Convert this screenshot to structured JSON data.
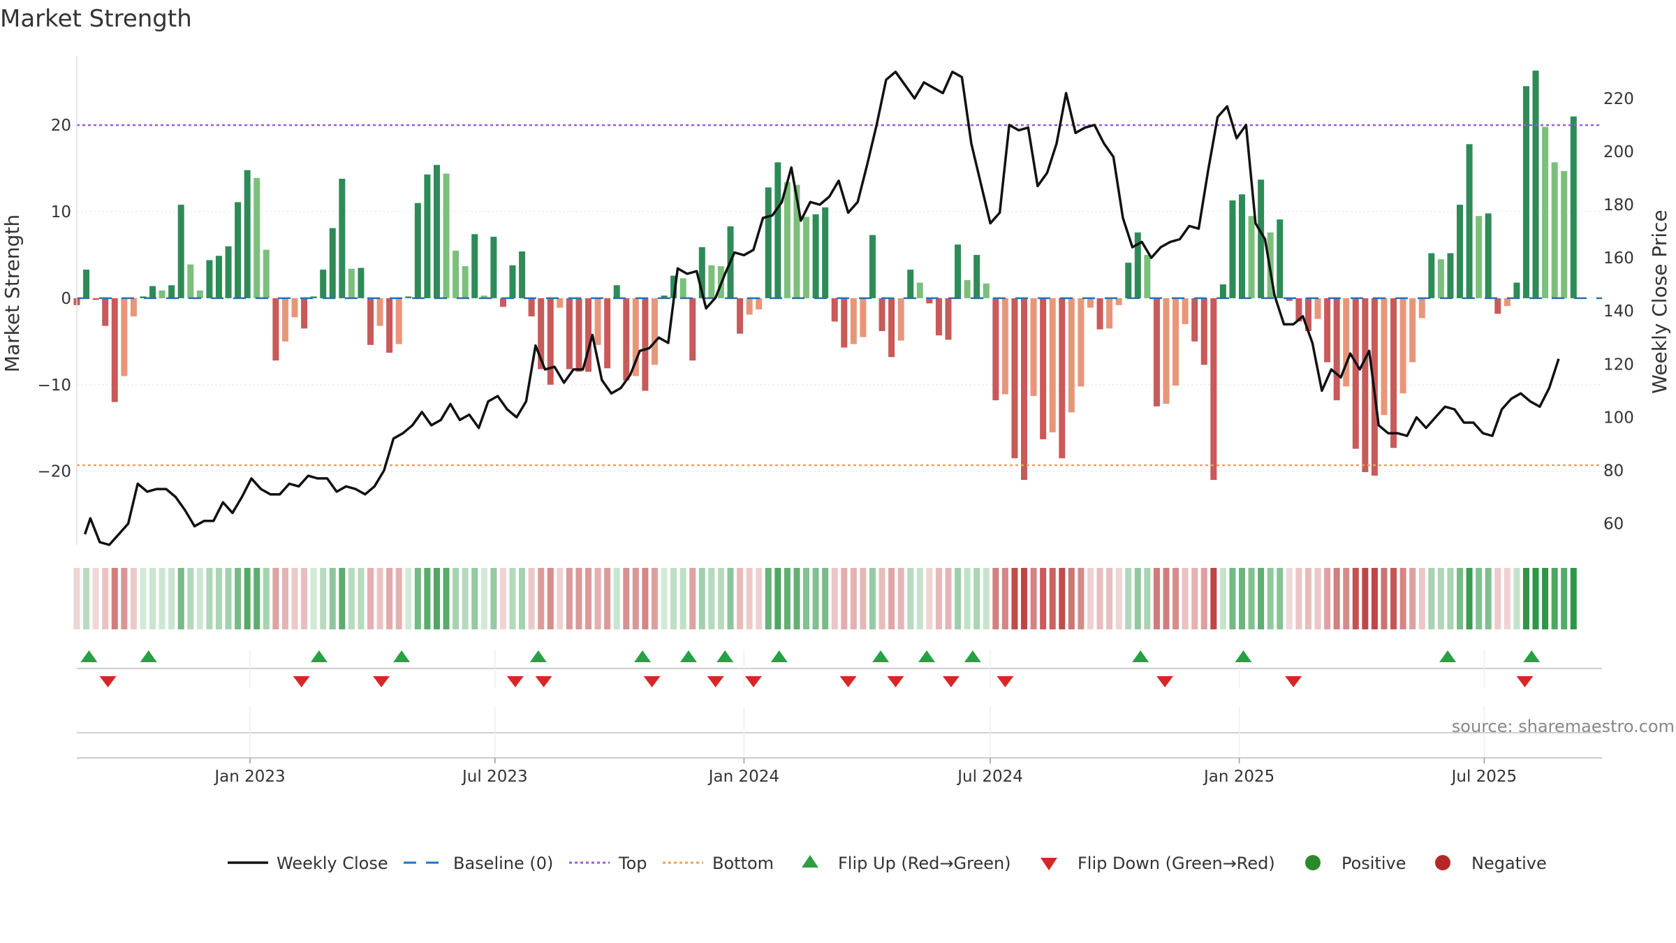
{
  "chart_data": {
    "type": "bar",
    "title": "Market Strength",
    "ylabel": "Market Strength",
    "y2label": "Weekly Close Price",
    "source": "source: sharemaestro.com",
    "ylim": [
      -28.5,
      28
    ],
    "y2lim": [
      52,
      236
    ],
    "yticks": [
      20,
      10,
      0,
      -10,
      -20
    ],
    "ytick_labels": [
      "20",
      "10",
      "0",
      "−10",
      "−20"
    ],
    "y2ticks": [
      220,
      200,
      180,
      160,
      140,
      120,
      100,
      80,
      60
    ],
    "top": 20,
    "bottom": -19.3,
    "x_start": "2022-08-26",
    "x_end": "2025-09-26",
    "xticks": [
      {
        "date": "2023-01-01",
        "label": "Jan 2023"
      },
      {
        "date": "2023-07-01",
        "label": "Jul 2023"
      },
      {
        "date": "2024-01-01",
        "label": "Jan 2024"
      },
      {
        "date": "2024-07-01",
        "label": "Jul 2024"
      },
      {
        "date": "2025-01-01",
        "label": "Jan 2025"
      },
      {
        "date": "2025-07-01",
        "label": "Jul 2025"
      }
    ],
    "bar_start": "2022-08-26",
    "bar_strength": [
      -0.8,
      3.3,
      -0.2,
      -3.2,
      -12,
      -9,
      -2.1,
      0.2,
      1.4,
      0.9,
      1.5,
      10.8,
      3.9,
      0.9,
      4.4,
      4.9,
      6,
      11.1,
      14.8,
      13.9,
      5.6,
      -7.2,
      -5,
      -2.2,
      -3.5,
      0.2,
      3.3,
      8.1,
      13.8,
      3.4,
      3.5,
      -5.4,
      -3.2,
      -6.3,
      -5.3,
      0.2,
      11,
      14.3,
      15.4,
      14.4,
      5.5,
      3.7,
      7.4,
      0.3,
      7.1,
      -1,
      3.8,
      5.4,
      -2.1,
      -8.2,
      -10,
      -1.1,
      -8.2,
      -8.5,
      -8.5,
      -5.4,
      -8.1,
      1.5,
      -9.5,
      -9,
      -10.7,
      -7.7,
      0.3,
      2.6,
      2.3,
      -7.2,
      5.9,
      3.8,
      3.7,
      8.3,
      -4.1,
      -1.9,
      -1.3,
      12.8,
      15.7,
      13.4,
      13.1,
      9.4,
      9.7,
      10.5,
      -2.7,
      -5.7,
      -5.3,
      -4.5,
      7.3,
      -3.8,
      -6.8,
      -4.9,
      3.3,
      1.8,
      -0.6,
      -4.3,
      -4.8,
      6.2,
      2.1,
      5,
      1.7,
      -11.8,
      -11.1,
      -18.5,
      -21,
      -11.3,
      -16.3,
      -15.5,
      -18.5,
      -13.2,
      -10.2,
      -1.1,
      -3.6,
      -3.5,
      -0.8,
      4.1,
      7.6,
      5,
      -12.5,
      -12.2,
      -10.1,
      -3,
      -5,
      -7.7,
      -21,
      1.6,
      11.3,
      12,
      9.5,
      13.7,
      7.6,
      9.1,
      -0.3,
      -2.7,
      -3.8,
      -2.4,
      -7.4,
      -11.8,
      -10.2,
      -17.4,
      -20.1,
      -20.5,
      -13.5,
      -17.3,
      -11,
      -7.4,
      -2.3,
      5.2,
      4.5,
      5.2,
      10.8,
      17.8,
      9.5,
      9.8,
      -1.8,
      -0.9,
      1.8,
      24.5,
      26.3,
      19.8,
      15.7,
      14.7,
      21
    ],
    "weekly_close": [
      {
        "d": "2022-09-01",
        "v": 56
      },
      {
        "d": "2022-09-05",
        "v": 62
      },
      {
        "d": "2022-09-12",
        "v": 53
      },
      {
        "d": "2022-09-19",
        "v": 52
      },
      {
        "d": "2022-09-26",
        "v": 56
      },
      {
        "d": "2022-10-03",
        "v": 60
      },
      {
        "d": "2022-10-10",
        "v": 75
      },
      {
        "d": "2022-10-17",
        "v": 72
      },
      {
        "d": "2022-10-24",
        "v": 73
      },
      {
        "d": "2022-10-31",
        "v": 73
      },
      {
        "d": "2022-11-07",
        "v": 70
      },
      {
        "d": "2022-11-14",
        "v": 65
      },
      {
        "d": "2022-11-21",
        "v": 59
      },
      {
        "d": "2022-11-28",
        "v": 61
      },
      {
        "d": "2022-12-05",
        "v": 61
      },
      {
        "d": "2022-12-12",
        "v": 68
      },
      {
        "d": "2022-12-19",
        "v": 64
      },
      {
        "d": "2022-12-26",
        "v": 70
      },
      {
        "d": "2023-01-02",
        "v": 77
      },
      {
        "d": "2023-01-09",
        "v": 73
      },
      {
        "d": "2023-01-16",
        "v": 71
      },
      {
        "d": "2023-01-23",
        "v": 71
      },
      {
        "d": "2023-01-30",
        "v": 75
      },
      {
        "d": "2023-02-06",
        "v": 74
      },
      {
        "d": "2023-02-13",
        "v": 78
      },
      {
        "d": "2023-02-20",
        "v": 77
      },
      {
        "d": "2023-02-27",
        "v": 77
      },
      {
        "d": "2023-03-06",
        "v": 72
      },
      {
        "d": "2023-03-13",
        "v": 74
      },
      {
        "d": "2023-03-20",
        "v": 73
      },
      {
        "d": "2023-03-27",
        "v": 71
      },
      {
        "d": "2023-04-03",
        "v": 74
      },
      {
        "d": "2023-04-10",
        "v": 80
      },
      {
        "d": "2023-04-17",
        "v": 92
      },
      {
        "d": "2023-04-24",
        "v": 94
      },
      {
        "d": "2023-05-01",
        "v": 97
      },
      {
        "d": "2023-05-08",
        "v": 102
      },
      {
        "d": "2023-05-15",
        "v": 97
      },
      {
        "d": "2023-05-22",
        "v": 99
      },
      {
        "d": "2023-05-29",
        "v": 105
      },
      {
        "d": "2023-06-05",
        "v": 99
      },
      {
        "d": "2023-06-12",
        "v": 101
      },
      {
        "d": "2023-06-19",
        "v": 96
      },
      {
        "d": "2023-06-26",
        "v": 106
      },
      {
        "d": "2023-07-03",
        "v": 108
      },
      {
        "d": "2023-07-10",
        "v": 103
      },
      {
        "d": "2023-07-17",
        "v": 100
      },
      {
        "d": "2023-07-24",
        "v": 106
      },
      {
        "d": "2023-07-31",
        "v": 127
      },
      {
        "d": "2023-08-07",
        "v": 118
      },
      {
        "d": "2023-08-14",
        "v": 119
      },
      {
        "d": "2023-08-21",
        "v": 113
      },
      {
        "d": "2023-08-28",
        "v": 118
      },
      {
        "d": "2023-09-04",
        "v": 118
      },
      {
        "d": "2023-09-11",
        "v": 131
      },
      {
        "d": "2023-09-18",
        "v": 114
      },
      {
        "d": "2023-09-25",
        "v": 109
      },
      {
        "d": "2023-10-02",
        "v": 111
      },
      {
        "d": "2023-10-09",
        "v": 116
      },
      {
        "d": "2023-10-16",
        "v": 125
      },
      {
        "d": "2023-10-23",
        "v": 126
      },
      {
        "d": "2023-10-30",
        "v": 130
      },
      {
        "d": "2023-11-06",
        "v": 128
      },
      {
        "d": "2023-11-13",
        "v": 156
      },
      {
        "d": "2023-11-20",
        "v": 154
      },
      {
        "d": "2023-11-27",
        "v": 155
      },
      {
        "d": "2023-12-04",
        "v": 141
      },
      {
        "d": "2023-12-11",
        "v": 145
      },
      {
        "d": "2023-12-18",
        "v": 154
      },
      {
        "d": "2023-12-25",
        "v": 162
      },
      {
        "d": "2024-01-01",
        "v": 161
      },
      {
        "d": "2024-01-08",
        "v": 163
      },
      {
        "d": "2024-01-15",
        "v": 175
      },
      {
        "d": "2024-01-22",
        "v": 176
      },
      {
        "d": "2024-01-29",
        "v": 181
      },
      {
        "d": "2024-02-05",
        "v": 194
      },
      {
        "d": "2024-02-12",
        "v": 174
      },
      {
        "d": "2024-02-19",
        "v": 181
      },
      {
        "d": "2024-02-26",
        "v": 180
      },
      {
        "d": "2024-03-04",
        "v": 183
      },
      {
        "d": "2024-03-11",
        "v": 189
      },
      {
        "d": "2024-03-18",
        "v": 177
      },
      {
        "d": "2024-03-25",
        "v": 181
      },
      {
        "d": "2024-04-01",
        "v": 195
      },
      {
        "d": "2024-04-08",
        "v": 210
      },
      {
        "d": "2024-04-15",
        "v": 227
      },
      {
        "d": "2024-04-22",
        "v": 230
      },
      {
        "d": "2024-04-29",
        "v": 225
      },
      {
        "d": "2024-05-06",
        "v": 220
      },
      {
        "d": "2024-05-13",
        "v": 226
      },
      {
        "d": "2024-05-20",
        "v": 224
      },
      {
        "d": "2024-05-27",
        "v": 222
      },
      {
        "d": "2024-06-03",
        "v": 230
      },
      {
        "d": "2024-06-10",
        "v": 228
      },
      {
        "d": "2024-06-17",
        "v": 203
      },
      {
        "d": "2024-06-24",
        "v": 188
      },
      {
        "d": "2024-07-01",
        "v": 173
      },
      {
        "d": "2024-07-08",
        "v": 177
      },
      {
        "d": "2024-07-15",
        "v": 210
      },
      {
        "d": "2024-07-22",
        "v": 208
      },
      {
        "d": "2024-07-29",
        "v": 209
      },
      {
        "d": "2024-08-05",
        "v": 187
      },
      {
        "d": "2024-08-12",
        "v": 192
      },
      {
        "d": "2024-08-19",
        "v": 203
      },
      {
        "d": "2024-08-26",
        "v": 222
      },
      {
        "d": "2024-09-02",
        "v": 207
      },
      {
        "d": "2024-09-09",
        "v": 209
      },
      {
        "d": "2024-09-16",
        "v": 210
      },
      {
        "d": "2024-09-23",
        "v": 203
      },
      {
        "d": "2024-09-30",
        "v": 198
      },
      {
        "d": "2024-10-07",
        "v": 175
      },
      {
        "d": "2024-10-14",
        "v": 164
      },
      {
        "d": "2024-10-21",
        "v": 166
      },
      {
        "d": "2024-10-28",
        "v": 160
      },
      {
        "d": "2024-11-04",
        "v": 164
      },
      {
        "d": "2024-11-11",
        "v": 166
      },
      {
        "d": "2024-11-18",
        "v": 167
      },
      {
        "d": "2024-11-25",
        "v": 172
      },
      {
        "d": "2024-12-02",
        "v": 171
      },
      {
        "d": "2024-12-09",
        "v": 193
      },
      {
        "d": "2024-12-16",
        "v": 213
      },
      {
        "d": "2024-12-23",
        "v": 217
      },
      {
        "d": "2024-12-30",
        "v": 205
      },
      {
        "d": "2025-01-06",
        "v": 210
      },
      {
        "d": "2025-01-13",
        "v": 173
      },
      {
        "d": "2025-01-20",
        "v": 167
      },
      {
        "d": "2025-01-27",
        "v": 146
      },
      {
        "d": "2025-02-03",
        "v": 135
      },
      {
        "d": "2025-02-10",
        "v": 135
      },
      {
        "d": "2025-02-17",
        "v": 138
      },
      {
        "d": "2025-02-24",
        "v": 128
      },
      {
        "d": "2025-03-03",
        "v": 110
      },
      {
        "d": "2025-03-10",
        "v": 118
      },
      {
        "d": "2025-03-17",
        "v": 115
      },
      {
        "d": "2025-03-24",
        "v": 124
      },
      {
        "d": "2025-03-31",
        "v": 118
      },
      {
        "d": "2025-04-07",
        "v": 125
      },
      {
        "d": "2025-04-14",
        "v": 97
      },
      {
        "d": "2025-04-21",
        "v": 94
      },
      {
        "d": "2025-04-28",
        "v": 94
      },
      {
        "d": "2025-05-05",
        "v": 93
      },
      {
        "d": "2025-05-12",
        "v": 100
      },
      {
        "d": "2025-05-19",
        "v": 96
      },
      {
        "d": "2025-05-26",
        "v": 100
      },
      {
        "d": "2025-06-02",
        "v": 104
      },
      {
        "d": "2025-06-09",
        "v": 103
      },
      {
        "d": "2025-06-16",
        "v": 98
      },
      {
        "d": "2025-06-23",
        "v": 98
      },
      {
        "d": "2025-06-30",
        "v": 94
      },
      {
        "d": "2025-07-07",
        "v": 93
      },
      {
        "d": "2025-07-14",
        "v": 103
      },
      {
        "d": "2025-07-21",
        "v": 107
      },
      {
        "d": "2025-07-28",
        "v": 109
      },
      {
        "d": "2025-08-04",
        "v": 106
      },
      {
        "d": "2025-08-11",
        "v": 104
      },
      {
        "d": "2025-08-18",
        "v": 111
      },
      {
        "d": "2025-08-25",
        "v": 122
      }
    ],
    "flip_up": [
      "2022-09-04",
      "2022-10-18",
      "2023-02-21",
      "2023-04-23",
      "2023-08-02",
      "2023-10-18",
      "2023-11-21",
      "2023-12-18",
      "2024-01-27",
      "2024-04-11",
      "2024-05-15",
      "2024-06-18",
      "2024-10-20",
      "2025-01-04",
      "2025-06-04",
      "2025-08-05"
    ],
    "flip_down": [
      "2022-09-18",
      "2023-02-08",
      "2023-04-08",
      "2023-07-16",
      "2023-08-06",
      "2023-10-25",
      "2023-12-11",
      "2024-01-08",
      "2024-03-18",
      "2024-04-22",
      "2024-06-02",
      "2024-07-12",
      "2024-11-07",
      "2025-02-10",
      "2025-07-31"
    ],
    "legend": [
      "Weekly Close",
      "Baseline (0)",
      "Top",
      "Bottom",
      "Flip Up (Red→Green)",
      "Flip Down (Green→Red)",
      "Positive",
      "Negative"
    ],
    "colors": {
      "strong_green": "#2e8b57",
      "light_green": "#7cbf7c",
      "strong_red": "#c85a5a",
      "light_red": "#e8967a",
      "close_line": "#111111",
      "top_line": "#9b59e0",
      "bottom_line": "#f0a060",
      "baseline": "#2a6fb0",
      "flip_up": "#2e9e44",
      "flip_down": "#d62728",
      "positive": "#2a8a2a",
      "negative": "#b52828"
    }
  }
}
